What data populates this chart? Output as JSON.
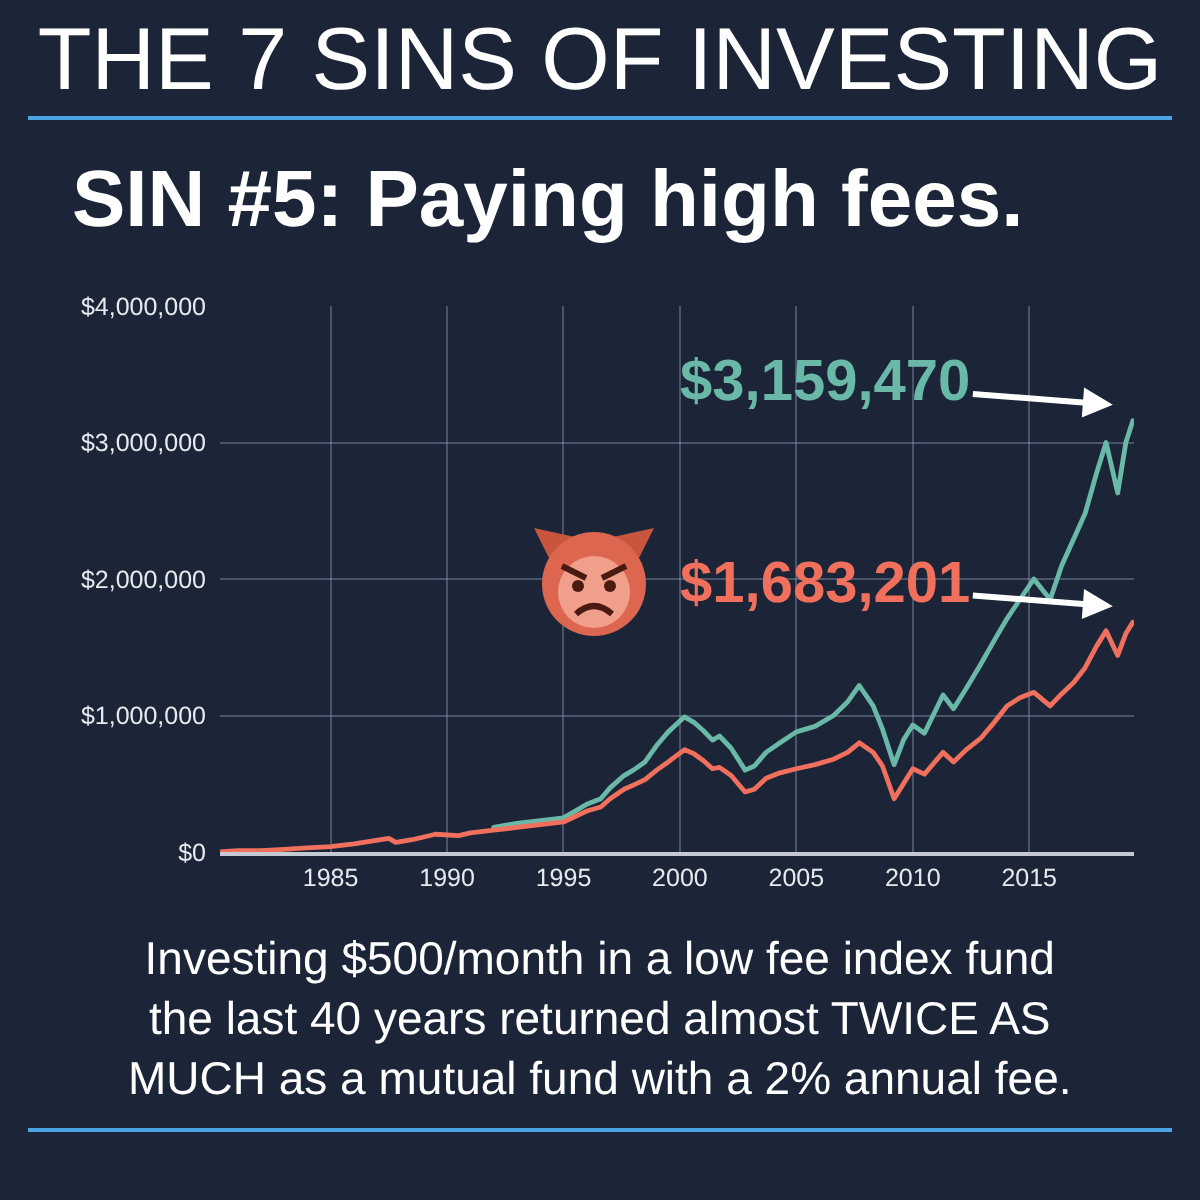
{
  "chart_data": {
    "type": "line",
    "title": "THE 7 SINS OF INVESTING",
    "subtitle": "SIN #5: Paying high fees.",
    "x": [
      1980.25,
      1981,
      1982,
      1983,
      1984,
      1985,
      1986,
      1987.5,
      1987.8,
      1988.5,
      1989.5,
      1990.5,
      1991,
      1992,
      1993,
      1994,
      1995,
      1995.5,
      1996,
      1996.6,
      1997,
      1997.6,
      1998,
      1998.5,
      1999,
      1999.5,
      2000.2,
      2000.6,
      2001,
      2001.4,
      2001.7,
      2002.2,
      2002.8,
      2003.2,
      2003.7,
      2004.3,
      2005,
      2005.8,
      2006.6,
      2007.2,
      2007.7,
      2008.3,
      2008.7,
      2009.2,
      2009.6,
      2010,
      2010.5,
      2011.3,
      2011.75,
      2012.3,
      2012.9,
      2013.5,
      2014.05,
      2014.6,
      2015.2,
      2015.9,
      2016.4,
      2016.9,
      2017.4,
      2017.9,
      2018.3,
      2018.8,
      2019.15,
      2019.45
    ],
    "series": [
      {
        "color": "#6ab8a7",
        "values": [
          null,
          null,
          null,
          null,
          null,
          null,
          null,
          null,
          null,
          null,
          null,
          null,
          null,
          180000,
          210000,
          230000,
          250000,
          300000,
          350000,
          390000,
          470000,
          560000,
          600000,
          660000,
          780000,
          880000,
          990000,
          950000,
          890000,
          820000,
          850000,
          760000,
          600000,
          630000,
          730000,
          800000,
          880000,
          920000,
          1000000,
          1100000,
          1220000,
          1070000,
          900000,
          640000,
          820000,
          930000,
          870000,
          1150000,
          1050000,
          1200000,
          1370000,
          1550000,
          1710000,
          1850000,
          2000000,
          1850000,
          2100000,
          2290000,
          2480000,
          2780000,
          3000000,
          2630000,
          3000000,
          3159470
        ]
      },
      {
        "color": "#f0705d",
        "values": [
          0,
          10000,
          10000,
          20000,
          30000,
          40000,
          60000,
          100000,
          70000,
          90000,
          130000,
          120000,
          140000,
          160000,
          180000,
          200000,
          220000,
          260000,
          300000,
          330000,
          390000,
          460000,
          490000,
          530000,
          600000,
          660000,
          750000,
          720000,
          670000,
          610000,
          620000,
          560000,
          440000,
          460000,
          540000,
          580000,
          610000,
          640000,
          680000,
          730000,
          800000,
          730000,
          630000,
          390000,
          500000,
          610000,
          570000,
          730000,
          660000,
          750000,
          830000,
          950000,
          1070000,
          1130000,
          1170000,
          1070000,
          1160000,
          1240000,
          1350000,
          1510000,
          1620000,
          1440000,
          1600000,
          1683201
        ]
      }
    ],
    "xlim": [
      1980.25,
      2019.5
    ],
    "xticks": [
      1985,
      1990,
      1995,
      2000,
      2005,
      2010,
      2015
    ],
    "ylim": [
      0,
      4000000
    ],
    "yticks": [
      {
        "value": 0,
        "label": "$0"
      },
      {
        "value": 1000000,
        "label": "$1,000,000"
      },
      {
        "value": 2000000,
        "label": "$2,000,000"
      },
      {
        "value": 3000000,
        "label": "$3,000,000"
      },
      {
        "value": 4000000,
        "label": "$4,000,000"
      }
    ],
    "grid": true,
    "annotations": [
      {
        "text": "$3,159,470",
        "x": 2019.45,
        "y": 3159470
      },
      {
        "text": "$1,683,201",
        "x": 2019.45,
        "y": 1683201
      },
      "Investing $500/month in a low fee index fund the last 40 years returned almost TWICE AS MUCH as a mutual fund with a 2% annual fee."
    ]
  }
}
